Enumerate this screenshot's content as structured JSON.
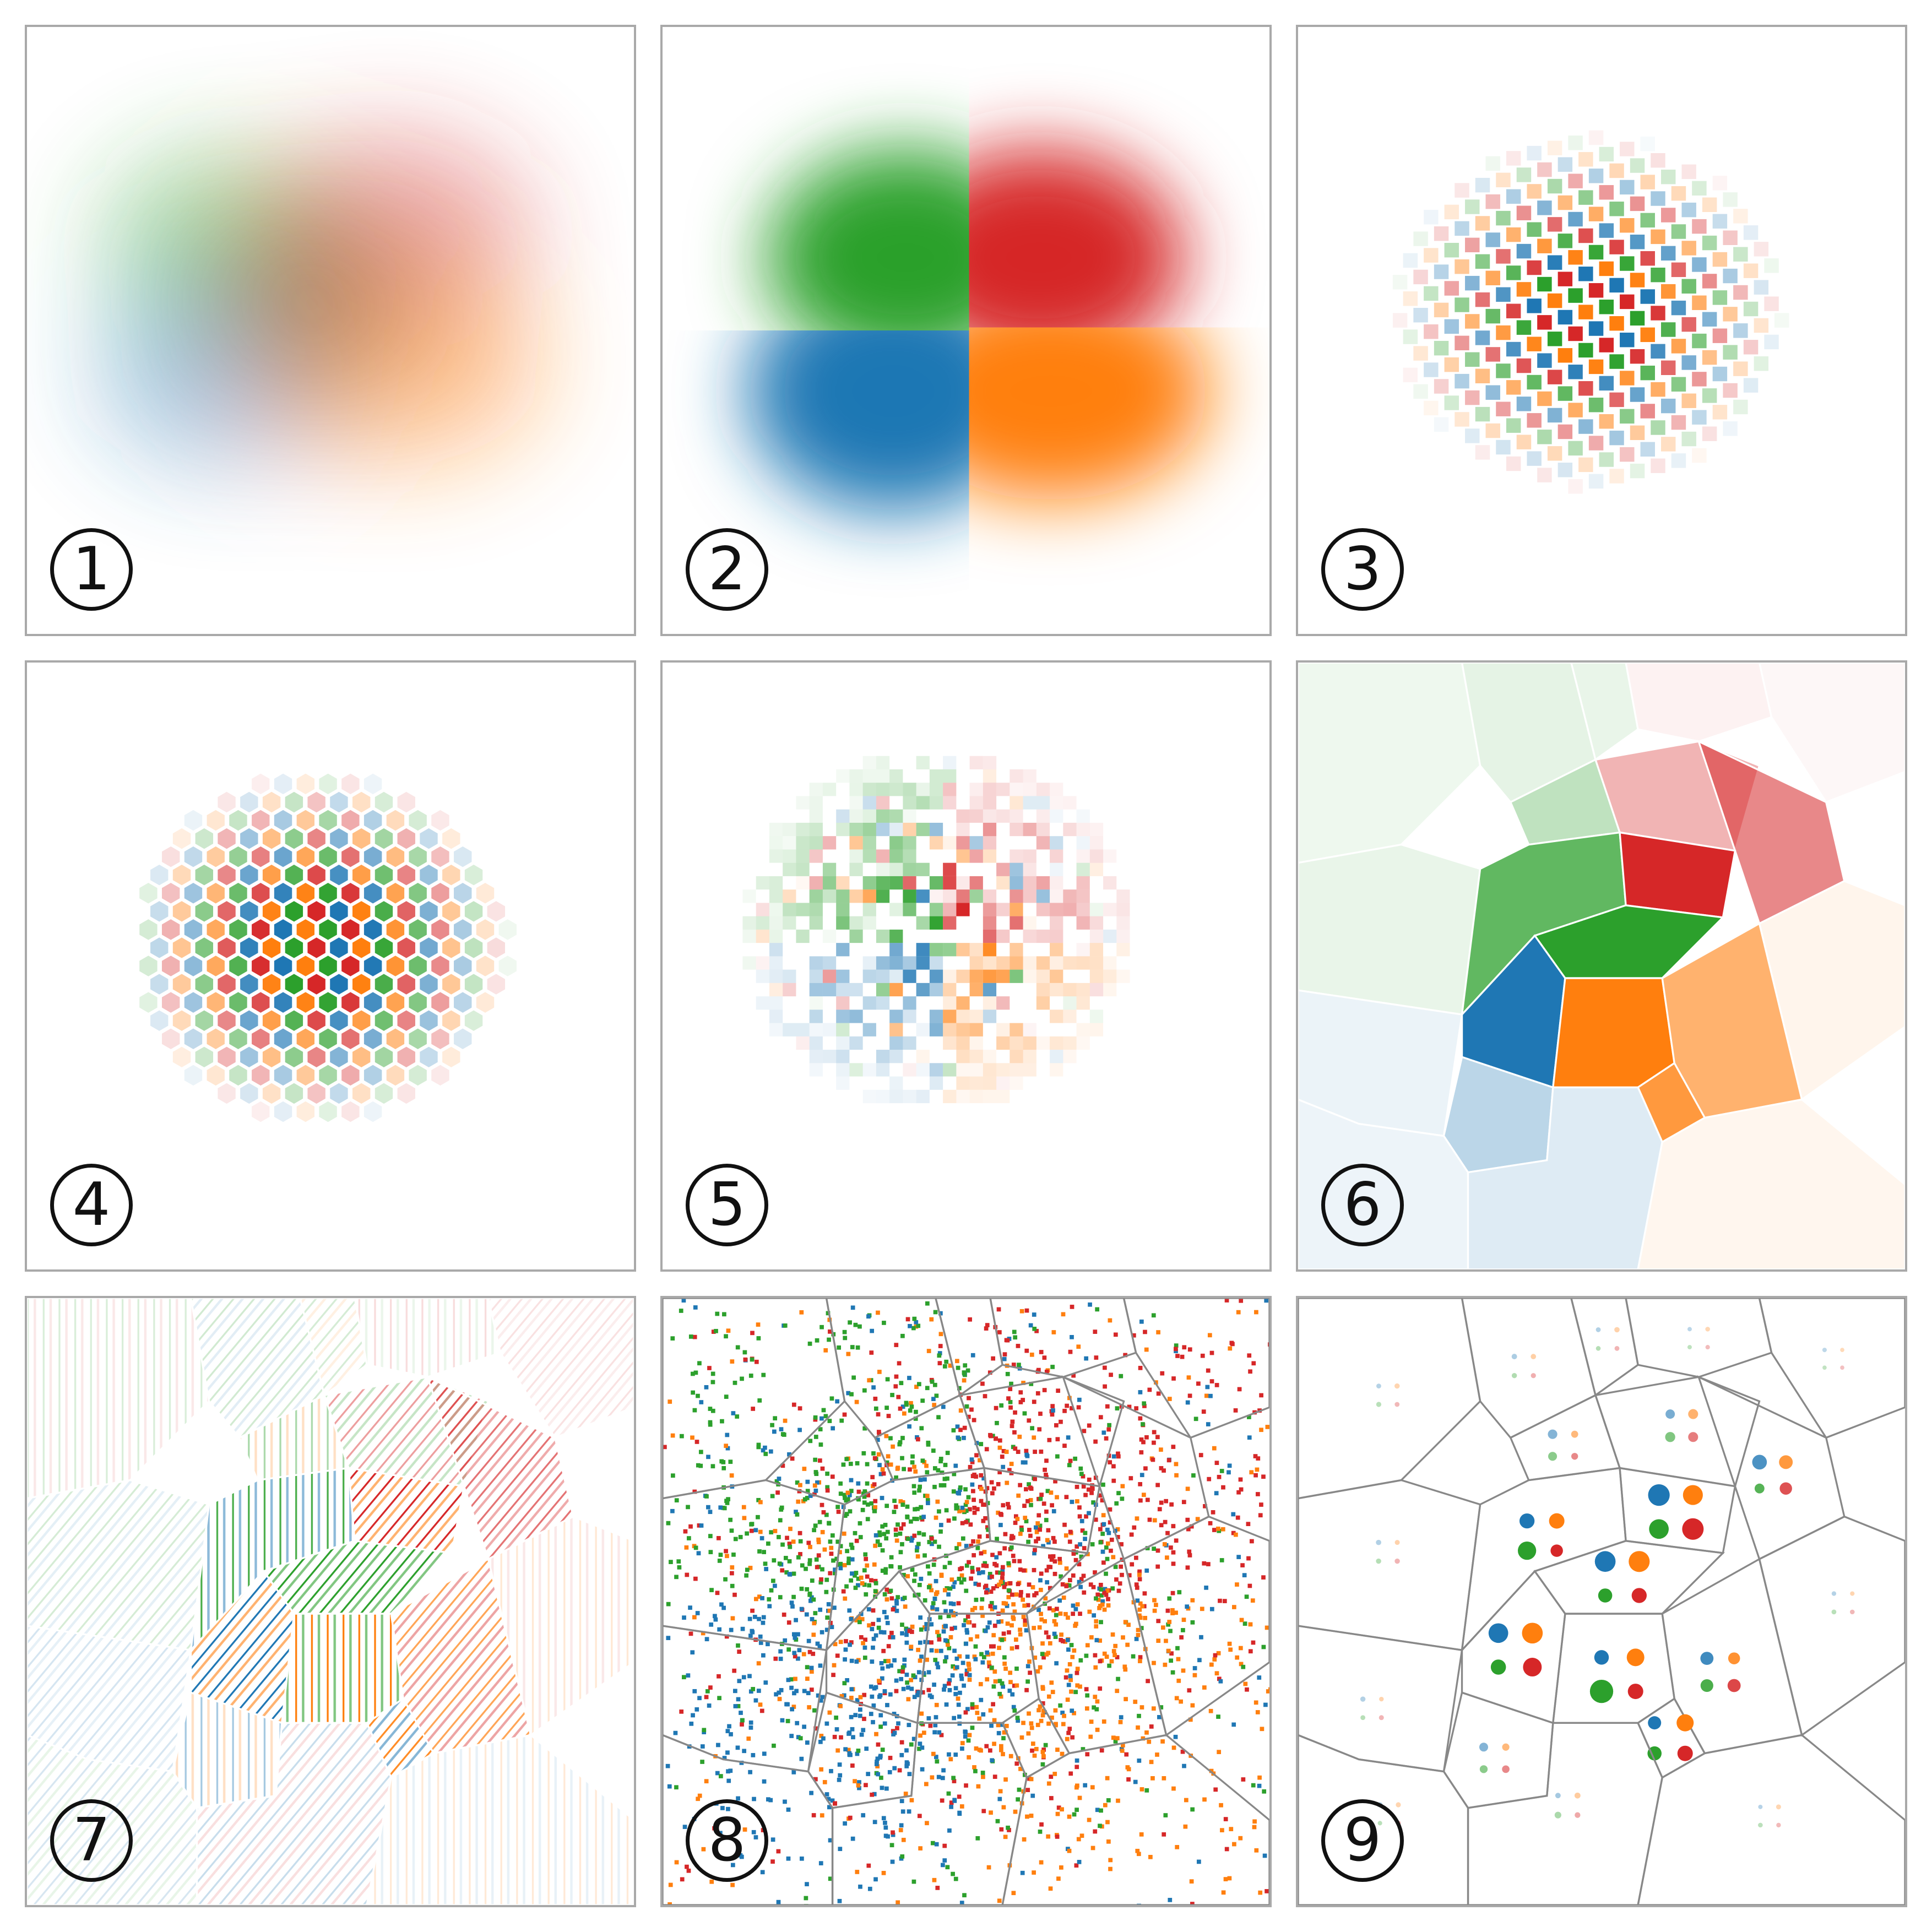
{
  "colors": {
    "blue": "#1f77b4",
    "orange": "#ff7f0e",
    "green": "#2ca02c",
    "red": "#d62728",
    "border": "#a9a9a9",
    "cell_line": "#888888"
  },
  "panels": [
    {
      "label": "1",
      "style": "blend"
    },
    {
      "label": "2",
      "style": "quadrant-blur"
    },
    {
      "label": "3",
      "style": "diamond-grid"
    },
    {
      "label": "4",
      "style": "hexagon-grid"
    },
    {
      "label": "5",
      "style": "random-squares"
    },
    {
      "label": "6",
      "style": "voronoi-filled"
    },
    {
      "label": "7",
      "style": "voronoi-hatched"
    },
    {
      "label": "8",
      "style": "voronoi-dots"
    },
    {
      "label": "9",
      "style": "voronoi-circles"
    }
  ]
}
